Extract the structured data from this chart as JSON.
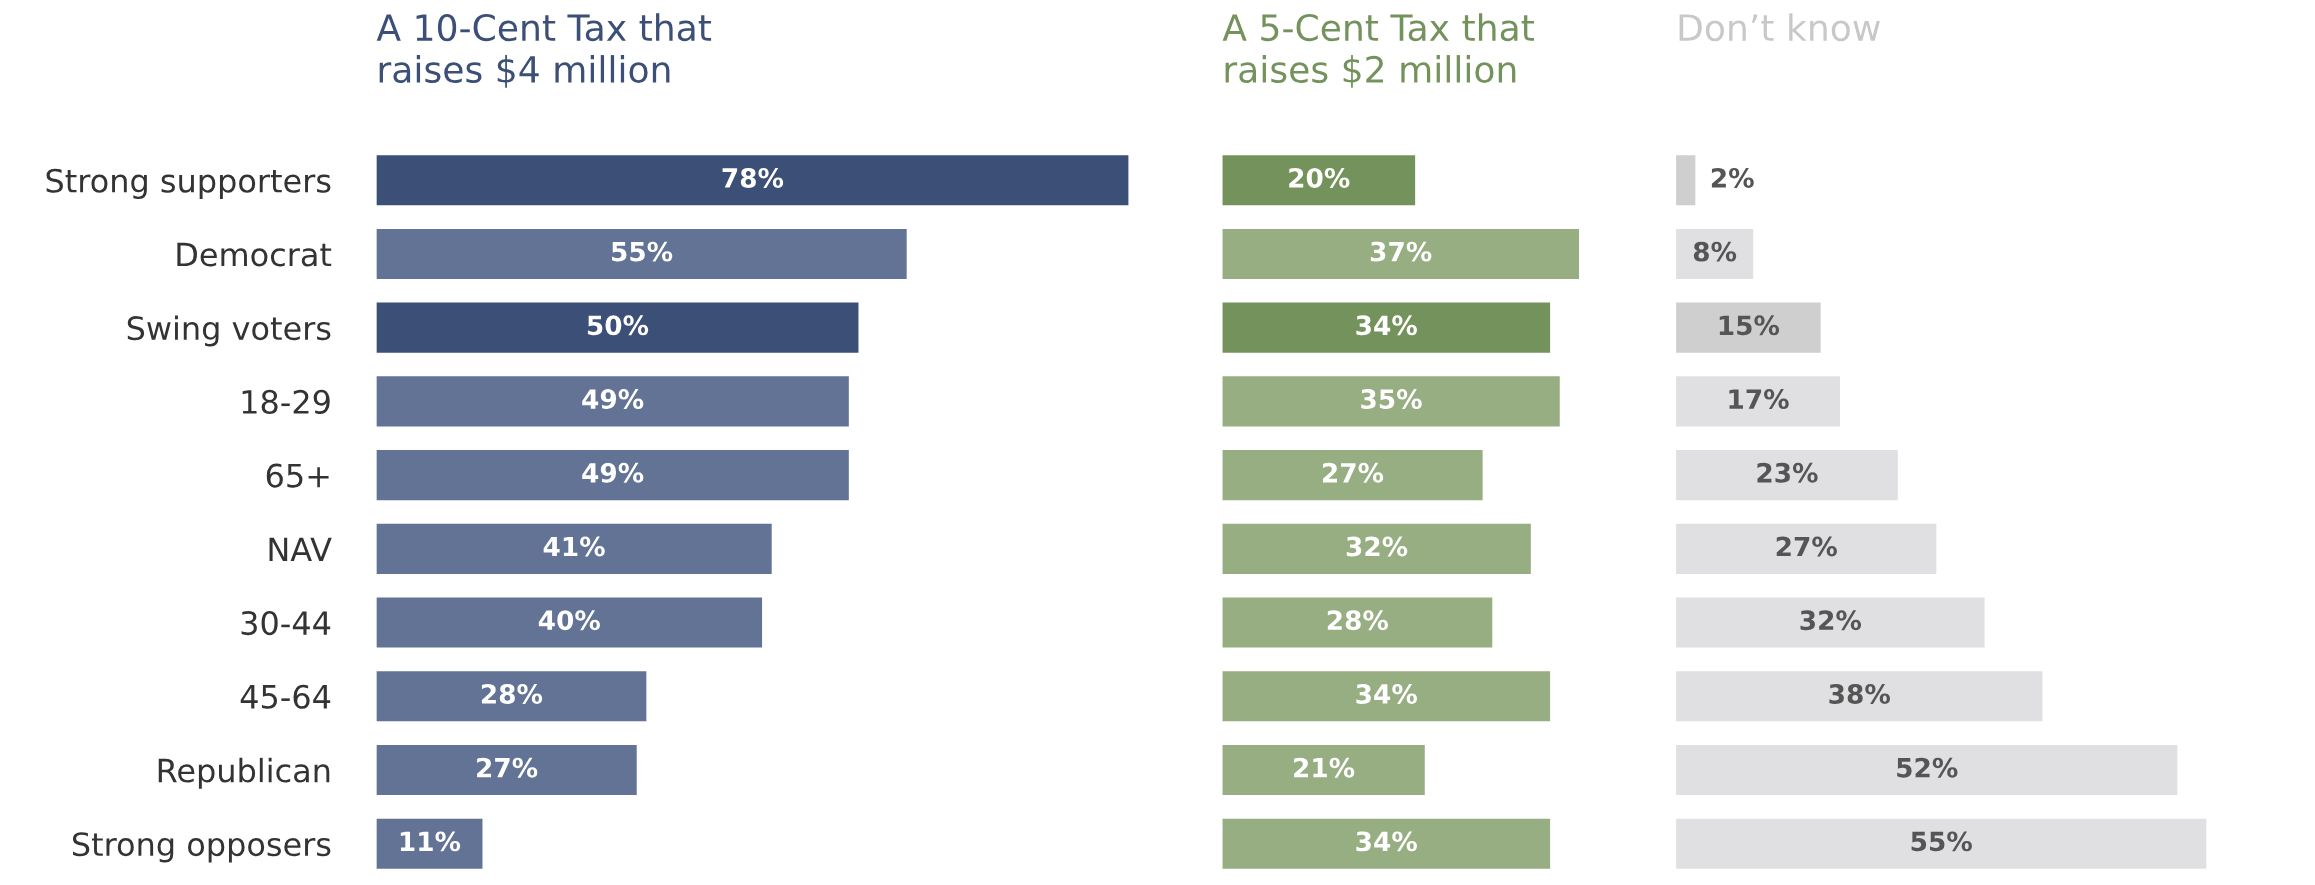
{
  "chart_data": [
    {
      "type": "bar",
      "orientation": "horizontal",
      "title": "A 10-Cent Tax that\nraises $4 million",
      "categories": [
        "Strong supporters",
        "Democrat",
        "Swing voters",
        "18-29",
        "65+",
        "NAV",
        "30-44",
        "45-64",
        "Republican",
        "Strong opposers"
      ],
      "tick_labels": "y",
      "series": [
        {
          "color": "#3c4f77",
          "colors": [
            "#3c4f77",
            "#627395",
            "#3c4f77",
            "#627395",
            "#627395",
            "#627395",
            "#627395",
            "#627395",
            "#627395",
            "#627395"
          ],
          "values": [
            78,
            55,
            50,
            49,
            49,
            41,
            40,
            28,
            27,
            11
          ],
          "value_labels": [
            "78%",
            "55%",
            "50%",
            "49%",
            "49%",
            "41%",
            "40%",
            "28%",
            "27%",
            "11%"
          ]
        }
      ]
    },
    {
      "type": "bar",
      "orientation": "horizontal",
      "title": "A 5-Cent Tax that\nraises $2 million",
      "categories": [
        null,
        null,
        null,
        null,
        null,
        null,
        null,
        null,
        null,
        null
      ],
      "tick_labels": false,
      "series": [
        {
          "color": "#74935c",
          "colors": [
            "#74935c",
            "#97ad82",
            "#74935c",
            "#97ad82",
            "#97ad82",
            "#97ad82",
            "#97ad82",
            "#97ad82",
            "#97ad82",
            "#97ad82"
          ],
          "values": [
            20,
            37,
            34,
            35,
            27,
            32,
            28,
            34,
            21,
            34
          ],
          "value_labels": [
            "20%",
            "37%",
            "34%",
            "35%",
            "27%",
            "32%",
            "28%",
            "34%",
            "21%",
            "34%"
          ]
        }
      ]
    },
    {
      "type": "bar",
      "orientation": "horizontal",
      "title": "Don’t know",
      "categories": [
        null,
        null,
        null,
        null,
        null,
        null,
        null,
        null,
        null,
        null
      ],
      "tick_labels": false,
      "series": [
        {
          "color": "#c8c8c8",
          "colors": [
            "#cfcfcf",
            "#e0e0e2",
            "#cfcfcf",
            "#e0e0e2",
            "#e0e0e2",
            "#e0e0e2",
            "#e0e0e2",
            "#e0e0e2",
            "#e0e0e2",
            "#e0e0e2"
          ],
          "values": [
            2,
            8,
            15,
            17,
            23,
            27,
            32,
            38,
            52,
            55
          ],
          "value_labels": [
            "2%",
            "8%",
            "15%",
            "17%",
            "23%",
            "27%",
            "32%",
            "38%",
            "52%",
            "55%"
          ]
        }
      ]
    }
  ]
}
